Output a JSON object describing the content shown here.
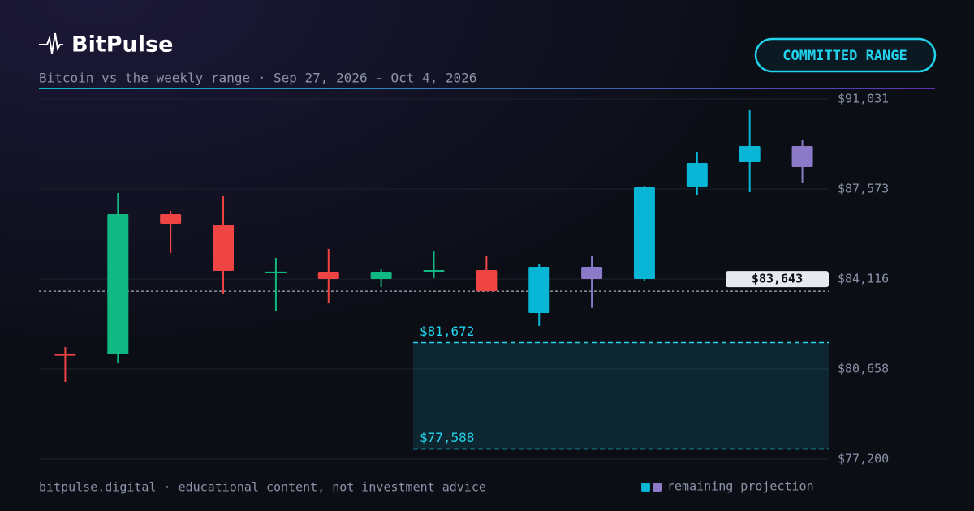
{
  "header": {
    "brand": "BitPulse",
    "subtitle": "Bitcoin vs the weekly range · Sep 27, 2026 - Oct 4, 2026",
    "badge": "COMMITTED RANGE"
  },
  "chart_data": {
    "type": "candlestick",
    "open": [
      81230,
      81219,
      86608,
      86203,
      84380,
      84396,
      84116,
      84440,
      84458,
      82807,
      84583,
      84116,
      87667,
      88601,
      89224
    ],
    "high": [
      81499,
      87418,
      86732,
      87293,
      84926,
      85268,
      84490,
      85175,
      84988,
      84676,
      84988,
      87698,
      88975,
      90595,
      89442
    ],
    "low": [
      80160,
      80876,
      85113,
      83524,
      82901,
      83212,
      83804,
      84147,
      83643,
      82309,
      83000,
      84053,
      87355,
      87449,
      87823
    ],
    "close": [
      81210,
      86608,
      86234,
      84427,
      84400,
      84116,
      84396,
      84460,
      83643,
      84583,
      84116,
      87636,
      88570,
      89224,
      88414
    ],
    "colors": [
      "#ef4444",
      "#10b981",
      "#ef4444",
      "#ef4444",
      "#10b981",
      "#ef4444",
      "#10b981",
      "#10b981",
      "#ef4444",
      "#06b6d4",
      "#8b7ac8",
      "#06b6d4",
      "#06b6d4",
      "#06b6d4",
      "#8b7ac8"
    ],
    "ylim": [
      77200,
      91031
    ],
    "yticks": [
      {
        "value": 77200,
        "label": "$77,200"
      },
      {
        "value": 80658,
        "label": "$80,658"
      },
      {
        "value": 84116,
        "label": "$84,116"
      },
      {
        "value": 87573,
        "label": "$87,573"
      },
      {
        "value": 91031,
        "label": "$91,031"
      }
    ],
    "grid": true,
    "current_price": {
      "value": 83643,
      "label": "$83,643"
    },
    "range": {
      "high": {
        "value": 81672,
        "label": "$81,672"
      },
      "low": {
        "value": 77588,
        "label": "$77,588"
      },
      "color": "#22d3ee"
    },
    "legend": {
      "label": "remaining projection",
      "colors": [
        "#06b6d4",
        "#8b7ac8"
      ]
    }
  },
  "footer": "bitpulse.digital · educational content, not investment advice"
}
